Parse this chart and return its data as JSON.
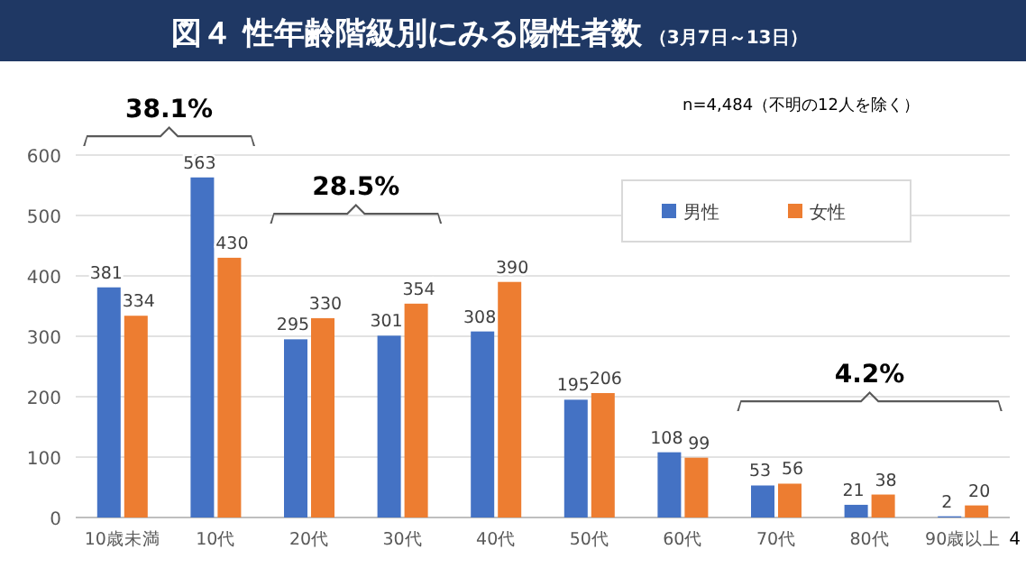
{
  "chart_data": {
    "type": "bar",
    "title": "図４ 性年齢階級別にみる陽性者数",
    "subtitle": "（3月7日～13日）",
    "categories": [
      "10歳未満",
      "10代",
      "20代",
      "30代",
      "40代",
      "50代",
      "60代",
      "70代",
      "80代",
      "90歳以上"
    ],
    "series": [
      {
        "name": "男性",
        "color": "#4472c4",
        "values": [
          381,
          563,
          295,
          301,
          308,
          195,
          108,
          53,
          21,
          2
        ]
      },
      {
        "name": "女性",
        "color": "#ed7d31",
        "values": [
          334,
          430,
          330,
          354,
          390,
          206,
          99,
          56,
          38,
          20
        ]
      }
    ],
    "ylim": [
      0,
      600
    ],
    "yticks": [
      0,
      100,
      200,
      300,
      400,
      500,
      600
    ],
    "grid": "y",
    "legend": "top right",
    "data_labels": true,
    "annotations": [
      "38.1%",
      "28.5%",
      "4.2%",
      "n=4,484（不明の12人を除く）",
      "4"
    ]
  }
}
